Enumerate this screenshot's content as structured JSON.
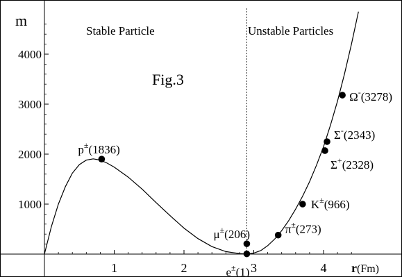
{
  "chart_data": {
    "type": "line",
    "figure_label": "Fig.3",
    "xlabel": "r",
    "xlabel_unit": "(Fm)",
    "ylabel": "m",
    "xlim": [
      0,
      4.5
    ],
    "ylim": [
      -50,
      4750
    ],
    "xticks": [
      1,
      2,
      3,
      4
    ],
    "yticks": [
      1000,
      2000,
      3000,
      4000
    ],
    "divider_x": 2.9,
    "region_labels": {
      "left": "Stable Particle",
      "right": "Unstable Particles"
    },
    "curve": {
      "x": [
        0.0,
        0.1,
        0.2,
        0.3,
        0.4,
        0.5,
        0.6,
        0.7,
        0.8,
        0.9,
        1.0,
        1.2,
        1.4,
        1.6,
        1.8,
        2.0,
        2.2,
        2.4,
        2.6,
        2.8,
        2.9,
        3.0,
        3.1,
        3.2,
        3.3,
        3.4,
        3.5,
        3.6,
        3.7,
        3.8,
        3.9,
        4.0,
        4.1,
        4.2,
        4.3,
        4.4,
        4.5
      ],
      "y": [
        0,
        550,
        1000,
        1350,
        1620,
        1790,
        1880,
        1905,
        1880,
        1820,
        1740,
        1540,
        1300,
        1030,
        770,
        520,
        310,
        150,
        50,
        10,
        0,
        20,
        70,
        170,
        300,
        470,
        670,
        900,
        1160,
        1450,
        1780,
        2150,
        2580,
        3060,
        3600,
        4200,
        4850
      ]
    },
    "points": [
      {
        "label": "p",
        "sup": "±",
        "value": "(1836)",
        "x": 0.82,
        "y": 1900
      },
      {
        "label": "μ",
        "sup": "±",
        "value": "(206)",
        "x": 2.9,
        "y": 206
      },
      {
        "label": "e",
        "sup": "±",
        "value": "(1)",
        "x": 2.9,
        "y": 5
      },
      {
        "label": "π",
        "sup": "±",
        "value": "(273)",
        "x": 3.35,
        "y": 380
      },
      {
        "label": "K",
        "sup": "±",
        "value": "(966)",
        "x": 3.7,
        "y": 1000
      },
      {
        "label": "Σ",
        "sup": "+",
        "value": "(2328)",
        "x": 4.02,
        "y": 2070
      },
      {
        "label": "Σ",
        "sup": "-",
        "value": "(2343)",
        "x": 4.05,
        "y": 2250
      },
      {
        "label": "Ω",
        "sup": "-",
        "value": "(3278)",
        "x": 4.27,
        "y": 3180
      }
    ]
  }
}
